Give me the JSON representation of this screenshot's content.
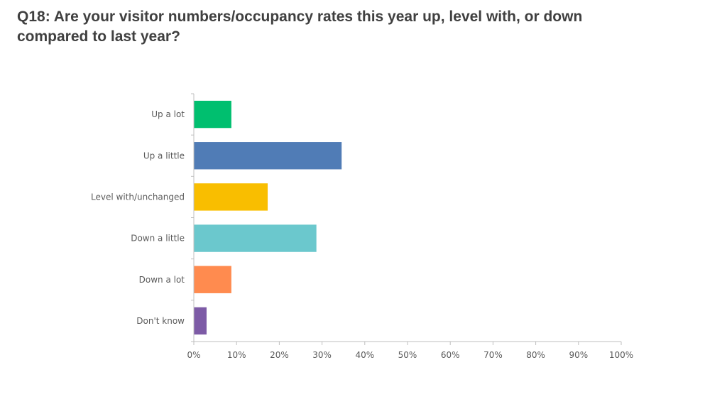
{
  "slide": {
    "title": "Q18: Are your visitor numbers/occupancy rates this year up, level with, or down compared to last year?"
  },
  "chart_data": {
    "type": "bar",
    "orientation": "horizontal",
    "categories": [
      "Up a lot",
      "Up a little",
      "Level with/unchanged",
      "Down a little",
      "Down a lot",
      "Don't know"
    ],
    "values": [
      8.7,
      34.5,
      17.2,
      28.6,
      8.7,
      2.9
    ],
    "colors": [
      "#00bf6f",
      "#507cb6",
      "#f9be00",
      "#6bc8cd",
      "#ff8b4f",
      "#7d5ba6"
    ],
    "unit": "%",
    "xlim": [
      0,
      100
    ],
    "xticks": [
      "0%",
      "10%",
      "20%",
      "30%",
      "40%",
      "50%",
      "60%",
      "70%",
      "80%",
      "90%",
      "100%"
    ],
    "xlabel": "",
    "ylabel": "",
    "grid": false,
    "legend": "none"
  }
}
